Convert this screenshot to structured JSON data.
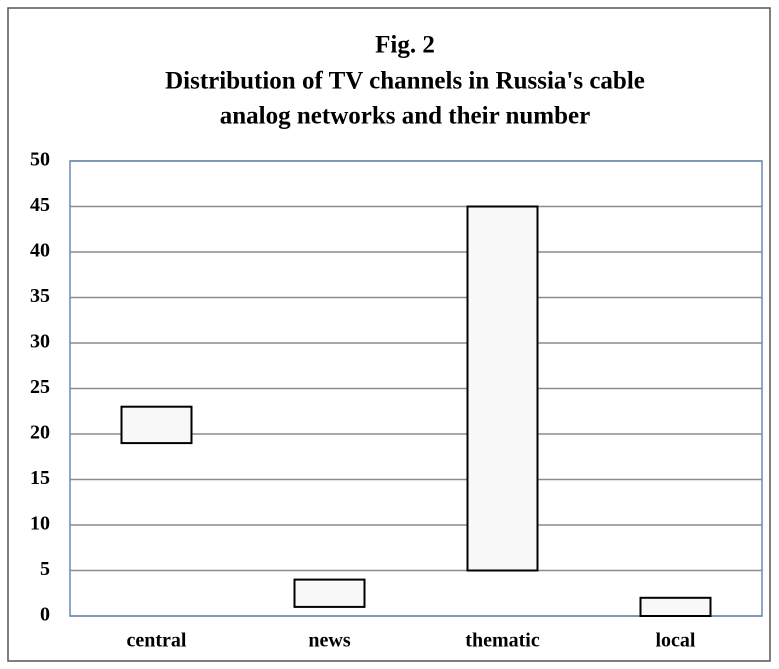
{
  "chart_data": {
    "type": "floating_bar",
    "title": "Fig. 2",
    "subtitle": [
      "Distribution of TV channels in Russia's cable",
      "analog networks and their number"
    ],
    "categories": [
      "central",
      "news",
      "thematic",
      "local"
    ],
    "low": [
      19,
      1,
      5,
      0
    ],
    "high": [
      23,
      4,
      45,
      2
    ],
    "color": "#f8f8f8",
    "edge_color": "#000000",
    "ylim": [
      0,
      50
    ],
    "yticks": [
      0,
      5,
      10,
      15,
      20,
      25,
      30,
      35,
      40,
      45,
      50
    ],
    "grid": true
  }
}
